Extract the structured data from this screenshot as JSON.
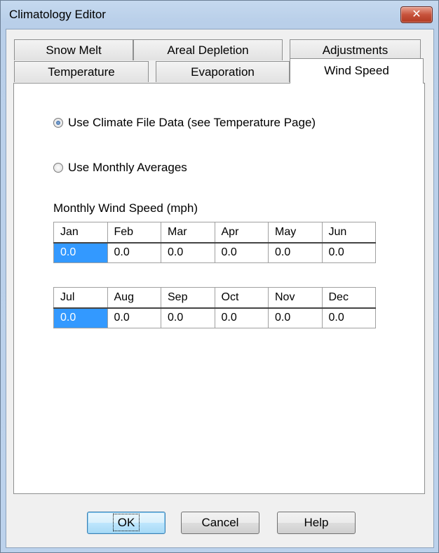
{
  "window": {
    "title": "Climatology Editor",
    "close_glyph": "✕"
  },
  "tabs_row_back": [
    {
      "label": "Snow Melt"
    },
    {
      "label": "Areal Depletion"
    },
    {
      "label": "Adjustments"
    }
  ],
  "tabs_row_front": [
    {
      "label": "Temperature"
    },
    {
      "label": "Evaporation"
    },
    {
      "label": "Wind Speed",
      "active": true
    }
  ],
  "options": {
    "climate_file": {
      "label": "Use Climate File Data (see Temperature Page)",
      "checked": true
    },
    "monthly_avg": {
      "label": "Use Monthly Averages",
      "checked": false
    }
  },
  "section_label": "Monthly Wind Speed (mph)",
  "table1": {
    "headers": [
      "Jan",
      "Feb",
      "Mar",
      "Apr",
      "May",
      "Jun"
    ],
    "values": [
      "0.0",
      "0.0",
      "0.0",
      "0.0",
      "0.0",
      "0.0"
    ]
  },
  "table2": {
    "headers": [
      "Jul",
      "Aug",
      "Sep",
      "Oct",
      "Nov",
      "Dec"
    ],
    "values": [
      "0.0",
      "0.0",
      "0.0",
      "0.0",
      "0.0",
      "0.0"
    ]
  },
  "buttons": {
    "ok": "OK",
    "cancel": "Cancel",
    "help": "Help"
  },
  "colors": {
    "selection": "#3399ff",
    "close_button": "#c7523b",
    "default_button_border": "#3c7fb1"
  }
}
